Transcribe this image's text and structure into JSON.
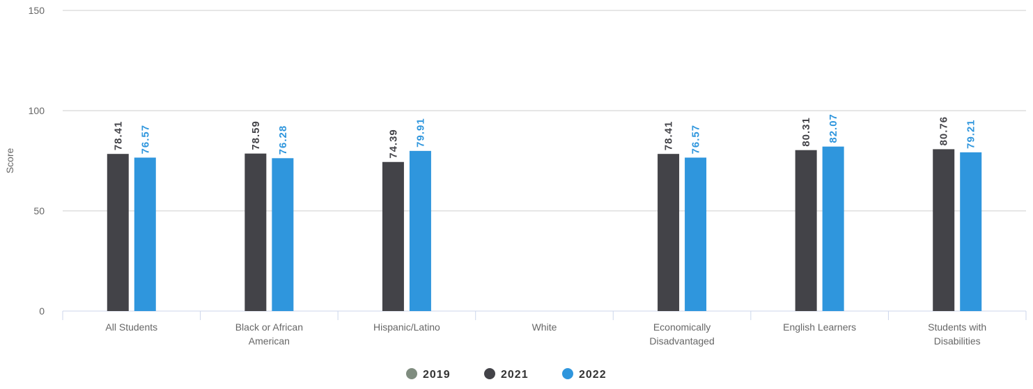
{
  "chart_data": {
    "type": "bar",
    "title": "",
    "xlabel": "",
    "ylabel": "Score",
    "ylim": [
      0,
      150
    ],
    "yticks": [
      0,
      50,
      100,
      150
    ],
    "grid": true,
    "legend_position": "bottom-center",
    "categories": [
      [
        "All Students"
      ],
      [
        "Black or African",
        "American"
      ],
      [
        "Hispanic/Latino"
      ],
      [
        "White"
      ],
      [
        "Economically",
        "Disadvantaged"
      ],
      [
        "English Learners"
      ],
      [
        "Students with",
        "Disabilities"
      ]
    ],
    "series": [
      {
        "name": "2019",
        "color": "#7f8c7f",
        "values": [
          null,
          null,
          null,
          null,
          null,
          null,
          null
        ]
      },
      {
        "name": "2021",
        "color": "#434348",
        "values": [
          78.41,
          78.59,
          74.39,
          null,
          78.41,
          80.31,
          80.76
        ]
      },
      {
        "name": "2022",
        "color": "#2f96dd",
        "values": [
          76.57,
          76.28,
          79.91,
          null,
          76.57,
          82.07,
          79.21
        ]
      }
    ]
  }
}
